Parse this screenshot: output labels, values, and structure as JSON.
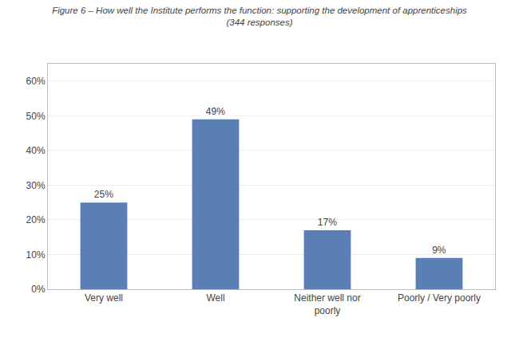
{
  "chart_data": {
    "type": "bar",
    "title": "Figure 6 – How well the Institute performs the function: supporting the development of apprenticeships",
    "subtitle": "(344 responses)",
    "categories": [
      "Very well",
      "Well",
      "Neither well nor\npoorly",
      "Poorly / Very poorly"
    ],
    "values": [
      25,
      49,
      17,
      9
    ],
    "value_labels": [
      "25%",
      "49%",
      "17%",
      "9%"
    ],
    "data_labels": true,
    "color": "#5b7fb5",
    "ylim": [
      0,
      65
    ],
    "yticks": [
      {
        "value": 0,
        "label": "0%"
      },
      {
        "value": 10,
        "label": "10%"
      },
      {
        "value": 20,
        "label": "20%"
      },
      {
        "value": 30,
        "label": "30%"
      },
      {
        "value": 40,
        "label": "40%"
      },
      {
        "value": 50,
        "label": "50%"
      },
      {
        "value": 60,
        "label": "60%"
      }
    ],
    "grid": true
  }
}
